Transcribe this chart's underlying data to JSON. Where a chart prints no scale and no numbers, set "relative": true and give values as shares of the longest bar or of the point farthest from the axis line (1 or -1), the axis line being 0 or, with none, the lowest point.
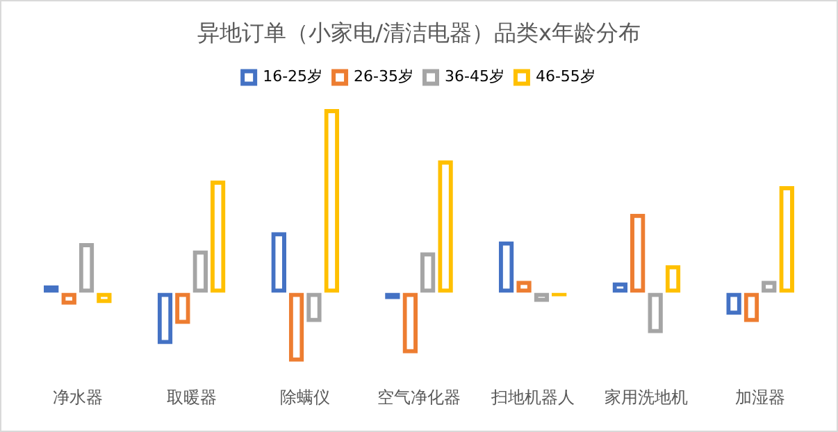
{
  "chart_data": {
    "type": "bar",
    "title": "异地订单（小家电/清洁电器）品类x年龄分布",
    "relative": true,
    "legend": "top",
    "grid": false,
    "categories": [
      "净水器",
      "取暖器",
      "除螨仪",
      "空气净化器",
      "扫地机器人",
      "家用洗地机",
      "加湿器"
    ],
    "series": [
      {
        "name": "16-25岁",
        "color": "#4472c4",
        "values": [
          0.04,
          -0.28,
          0.33,
          -0.035,
          0.28,
          0.057,
          -0.12
        ]
      },
      {
        "name": "26-35岁",
        "color": "#ed7d31",
        "values": [
          -0.065,
          -0.17,
          -0.375,
          -0.33,
          0.065,
          0.43,
          -0.16
        ]
      },
      {
        "name": "36-45岁",
        "color": "#a5a5a5",
        "values": [
          0.27,
          0.23,
          -0.16,
          0.22,
          -0.05,
          -0.22,
          0.065
        ]
      },
      {
        "name": "46-55岁",
        "color": "#ffc000",
        "values": [
          -0.057,
          0.61,
          1,
          0.72,
          -0.02,
          0.15,
          0.58
        ]
      }
    ]
  }
}
